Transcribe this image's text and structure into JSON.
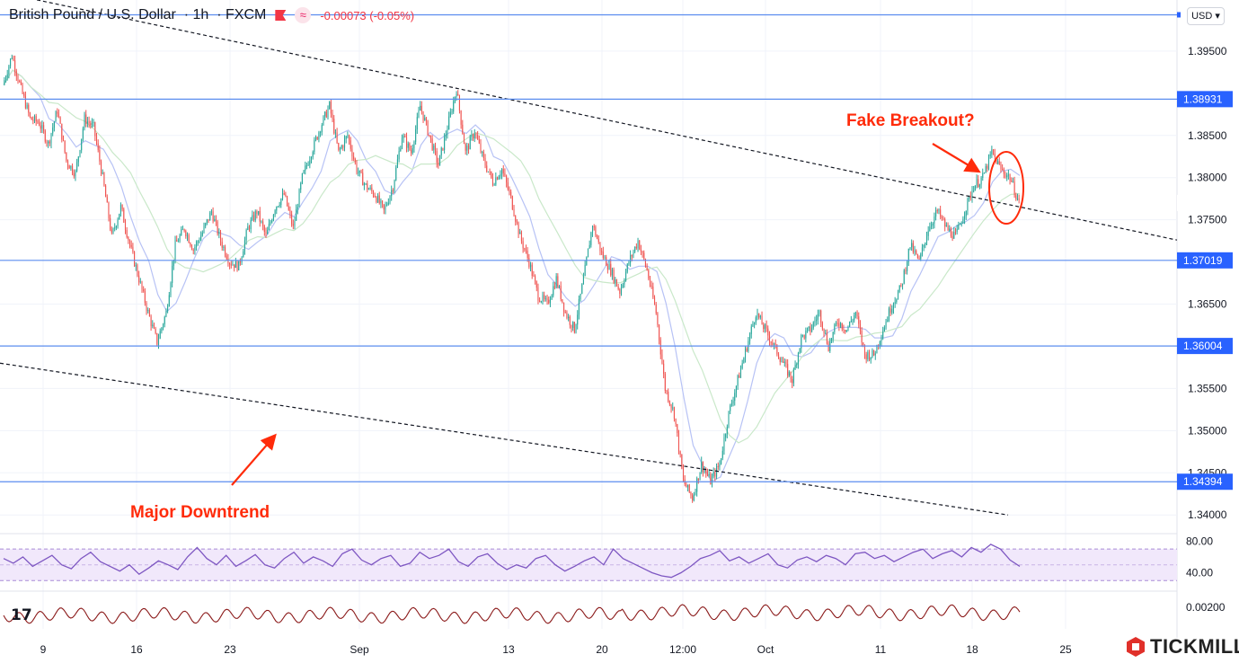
{
  "header": {
    "symbol": "British Pound / U.S. Dollar",
    "timeframe": "1h",
    "exchange": "FXCM",
    "change": "-0.00073 (-0.05%)"
  },
  "currency_button": "USD",
  "brand": "TICKMILL",
  "tv_logo": "17",
  "annotations": {
    "fake_breakout": "Fake Breakout?",
    "major_downtrend": "Major Downtrend"
  },
  "colors": {
    "up": "#26a69a",
    "down": "#ef5350",
    "level_line": "#5b8def",
    "annotation": "#ff2b0a",
    "rsi": "#7e57c2",
    "osc": "#8b1a1a"
  },
  "chart_data": {
    "type": "candlestick",
    "symbol": "GBPUSD",
    "interval": "1h",
    "y_ticks": [
      "1.39500",
      "1.38500",
      "1.38000",
      "1.37500",
      "1.36500",
      "1.35500",
      "1.35000",
      "1.34500",
      "1.34000"
    ],
    "ylim": [
      1.338,
      1.4
    ],
    "x_ticks": [
      "9",
      "16",
      "23",
      "Sep",
      "13",
      "20",
      "12:00",
      "Oct",
      "11",
      "18",
      "25"
    ],
    "horizontal_levels": [
      {
        "value": 1.39931,
        "label": ""
      },
      {
        "value": 1.38931,
        "label": "1.38931"
      },
      {
        "value": 1.37019,
        "label": "1.37019"
      },
      {
        "value": 1.36004,
        "label": "1.36004"
      },
      {
        "value": 1.34394,
        "label": "1.34394"
      }
    ],
    "price_path": [
      1.391,
      1.3945,
      1.3905,
      1.387,
      1.3865,
      1.384,
      1.388,
      1.382,
      1.3805,
      1.387,
      1.386,
      1.38,
      1.373,
      1.3765,
      1.372,
      1.368,
      1.364,
      1.3605,
      1.364,
      1.372,
      1.374,
      1.3715,
      1.3735,
      1.376,
      1.3725,
      1.37,
      1.3695,
      1.374,
      1.376,
      1.373,
      1.3765,
      1.378,
      1.374,
      1.38,
      1.383,
      1.386,
      1.3885,
      1.383,
      1.385,
      1.381,
      1.379,
      1.378,
      1.376,
      1.379,
      1.385,
      1.383,
      1.3885,
      1.385,
      1.3815,
      1.386,
      1.3905,
      1.383,
      1.3855,
      1.382,
      1.3795,
      1.381,
      1.3775,
      1.373,
      1.37,
      1.366,
      1.365,
      1.368,
      1.364,
      1.362,
      1.368,
      1.3745,
      1.371,
      1.369,
      1.3665,
      1.37,
      1.3725,
      1.369,
      1.364,
      1.355,
      1.352,
      1.344,
      1.342,
      1.346,
      1.344,
      1.346,
      1.352,
      1.356,
      1.36,
      1.364,
      1.362,
      1.36,
      1.358,
      1.356,
      1.361,
      1.362,
      1.364,
      1.36,
      1.363,
      1.362,
      1.364,
      1.359,
      1.359,
      1.362,
      1.365,
      1.367,
      1.372,
      1.37,
      1.374,
      1.376,
      1.374,
      1.373,
      1.376,
      1.379,
      1.38,
      1.383,
      1.381,
      1.38,
      1.377
    ],
    "trendlines": [
      {
        "name": "",
        "x": [
          "start",
          "Oct 22"
        ],
        "y": [
          1.402,
          1.376
        ],
        "style": "dashed"
      },
      {
        "name": "",
        "x": [
          "start",
          "Oct 22"
        ],
        "y": [
          1.358,
          1.34
        ],
        "style": "dashed"
      }
    ],
    "moving_averages": [
      {
        "name": "",
        "color": "#b7c2f5"
      },
      {
        "name": "",
        "color": "#c9e8c9"
      }
    ],
    "rsi": {
      "y_ticks": [
        "80.00",
        "40.00"
      ],
      "upper": 70,
      "lower": 30,
      "ylim": [
        20,
        85
      ],
      "values": [
        58,
        52,
        60,
        48,
        55,
        62,
        50,
        45,
        58,
        66,
        54,
        48,
        42,
        50,
        38,
        46,
        55,
        50,
        44,
        60,
        72,
        58,
        50,
        62,
        48,
        55,
        63,
        50,
        46,
        58,
        66,
        52,
        60,
        55,
        48,
        64,
        70,
        56,
        50,
        58,
        62,
        48,
        52,
        66,
        58,
        62,
        70,
        54,
        48,
        60,
        64,
        52,
        44,
        50,
        46,
        58,
        62,
        50,
        42,
        48,
        55,
        60,
        50,
        70,
        58,
        52,
        46,
        40,
        36,
        34,
        40,
        48,
        58,
        62,
        68,
        55,
        60,
        52,
        58,
        64,
        50,
        46,
        56,
        60,
        54,
        62,
        58,
        50,
        64,
        66,
        58,
        62,
        54,
        60,
        66,
        70,
        58,
        64,
        68,
        60,
        72,
        66,
        76,
        70,
        56,
        48
      ]
    },
    "oscillator": {
      "y_ticks": [
        "0.00200"
      ],
      "amplitude": 0.0012
    }
  }
}
